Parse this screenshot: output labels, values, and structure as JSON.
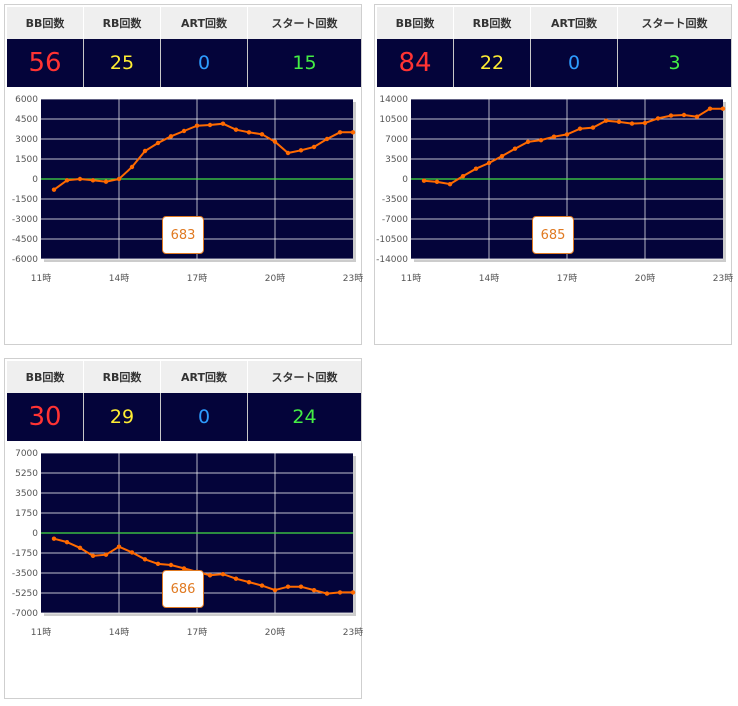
{
  "headers": {
    "bb": "BB回数",
    "rb": "RB回数",
    "art": "ART回数",
    "start": "スタート回数"
  },
  "colors": {
    "bb": "#ff3333",
    "rb": "#ffee33",
    "art": "#2d9cff",
    "start": "#44ee44",
    "line": "#ff6a00",
    "zero": "#44dd44",
    "plot_bg": "#04043a"
  },
  "machines": [
    {
      "bb": "56",
      "rb": "25",
      "art": "0",
      "start": "15",
      "number": "683"
    },
    {
      "bb": "84",
      "rb": "22",
      "art": "0",
      "start": "3",
      "number": "685"
    },
    {
      "bb": "30",
      "rb": "29",
      "art": "0",
      "start": "24",
      "number": "686"
    }
  ],
  "chart_data": [
    {
      "type": "line",
      "xticks": [
        "11時",
        "14時",
        "17時",
        "20時",
        "23時"
      ],
      "xlim": [
        11,
        23
      ],
      "yticks": [
        "6000",
        "4500",
        "3000",
        "1500",
        "0",
        "-1500",
        "-3000",
        "-4500",
        "-6000"
      ],
      "ylim": [
        -6000,
        6000
      ],
      "series": [
        {
          "x": [
            11.5,
            12,
            12.5,
            13,
            13.5,
            14,
            14.5,
            15,
            15.5,
            16,
            16.5,
            17,
            17.5,
            18,
            18.5,
            19,
            19.5,
            20,
            20.5,
            21,
            21.5,
            22,
            22.5,
            23
          ],
          "y": [
            -800,
            -100,
            0,
            -100,
            -200,
            0,
            900,
            2100,
            2700,
            3200,
            3600,
            4000,
            4050,
            4150,
            3700,
            3500,
            3350,
            2800,
            1950,
            2150,
            2400,
            3000,
            3500,
            3500
          ]
        }
      ]
    },
    {
      "type": "line",
      "xticks": [
        "11時",
        "14時",
        "17時",
        "20時",
        "23時"
      ],
      "xlim": [
        11,
        23
      ],
      "yticks": [
        "14000",
        "10500",
        "7000",
        "3500",
        "0",
        "-3500",
        "-7000",
        "-10500",
        "-14000"
      ],
      "ylim": [
        -14000,
        14000
      ],
      "series": [
        {
          "x": [
            11.5,
            12,
            12.5,
            13,
            13.5,
            14,
            14.5,
            15,
            15.5,
            16,
            16.5,
            17,
            17.5,
            18,
            18.5,
            19,
            19.5,
            20,
            20.5,
            21,
            21.5,
            22,
            22.5,
            23
          ],
          "y": [
            -300,
            -500,
            -900,
            500,
            1800,
            2800,
            4000,
            5300,
            6500,
            6800,
            7400,
            7800,
            8800,
            9000,
            10200,
            10000,
            9700,
            9800,
            10600,
            11100,
            11200,
            10900,
            12300,
            12300
          ]
        }
      ]
    },
    {
      "type": "line",
      "xticks": [
        "11時",
        "14時",
        "17時",
        "20時",
        "23時"
      ],
      "xlim": [
        11,
        23
      ],
      "yticks": [
        "7000",
        "5250",
        "3500",
        "1750",
        "0",
        "-1750",
        "-3500",
        "-5250",
        "-7000"
      ],
      "ylim": [
        -7000,
        7000
      ],
      "series": [
        {
          "x": [
            11.5,
            12,
            12.5,
            13,
            13.5,
            14,
            14.5,
            15,
            15.5,
            16,
            16.5,
            17,
            17.5,
            18,
            18.5,
            19,
            19.5,
            20,
            20.5,
            21,
            21.5,
            22,
            22.5,
            23
          ],
          "y": [
            -500,
            -800,
            -1300,
            -2000,
            -1900,
            -1200,
            -1700,
            -2300,
            -2700,
            -2800,
            -3100,
            -3400,
            -3700,
            -3600,
            -4000,
            -4300,
            -4600,
            -5000,
            -4700,
            -4700,
            -5000,
            -5300,
            -5200,
            -5200
          ]
        }
      ]
    }
  ]
}
